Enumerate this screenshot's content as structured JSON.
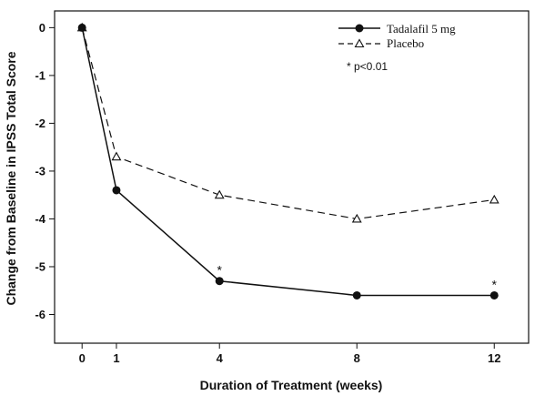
{
  "chart_data": {
    "type": "line",
    "xlabel": "Duration of Treatment (weeks)",
    "ylabel": "Change from Baseline in IPSS Total Score",
    "xlim": [
      -0.8,
      13
    ],
    "ylim": [
      -6.6,
      0.35
    ],
    "x_ticks": [
      0,
      1,
      4,
      8,
      12
    ],
    "y_ticks": [
      0,
      -1,
      -2,
      -3,
      -4,
      -5,
      -6
    ],
    "x_tick_labels": [
      "0",
      "1",
      "4",
      "8",
      "12"
    ],
    "y_tick_labels": [
      "0",
      "-1",
      "-2",
      "-3",
      "-4",
      "-5",
      "-6"
    ],
    "grid": false,
    "legend_position": "top-right",
    "series": [
      {
        "name": "Tadalafil 5 mg",
        "marker": "filled-circle",
        "line_style": "solid",
        "x": [
          0,
          1,
          4,
          8,
          12
        ],
        "y": [
          0,
          -3.4,
          -5.3,
          -5.6,
          -5.6
        ]
      },
      {
        "name": "Placebo",
        "marker": "open-triangle",
        "line_style": "dashed",
        "x": [
          0,
          1,
          4,
          8,
          12
        ],
        "y": [
          0,
          -2.7,
          -3.5,
          -4.0,
          -3.6
        ]
      }
    ],
    "significance_marks": [
      {
        "text": "*",
        "series": "Tadalafil 5 mg",
        "x": 4
      },
      {
        "text": "*",
        "series": "Tadalafil 5 mg",
        "x": 12
      }
    ],
    "annotation": "* p<0.01"
  }
}
